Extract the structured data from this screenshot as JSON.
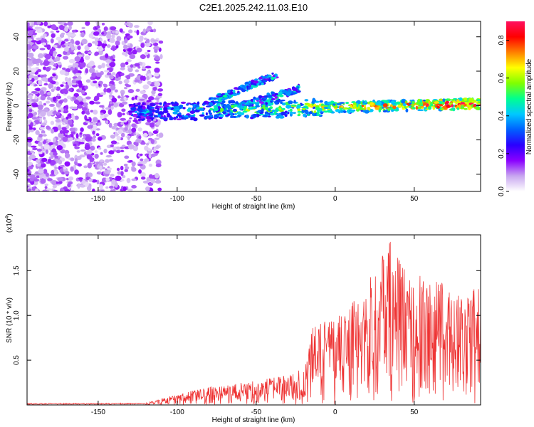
{
  "title": "C2E1.2025.242.11.03.E10",
  "chart_data": [
    {
      "type": "heatmap",
      "xlabel": "Height of straight line (km)",
      "ylabel": "Frequency (Hz)",
      "xlim": [
        -195,
        92
      ],
      "ylim": [
        -50,
        49
      ],
      "xticks": [
        -150,
        -100,
        -50,
        0,
        50
      ],
      "xtick_labels": [
        "-150",
        "-100",
        "-50",
        "0",
        "50"
      ],
      "yticks": [
        -40,
        -20,
        0,
        20,
        40
      ],
      "ytick_labels": [
        "-40",
        "-20",
        "0",
        "20",
        "40"
      ],
      "colorbar": {
        "label": "Normalized spectral amplitude",
        "range": [
          0,
          0.9
        ],
        "ticks": [
          "0.0",
          "0.2",
          "0.4",
          "0.6",
          "0.8"
        ],
        "tick_values": [
          0,
          0.2,
          0.4,
          0.6,
          0.8
        ],
        "colors": [
          "#ffffff",
          "#c8a6f0",
          "#8a00ff",
          "#2a00ff",
          "#0060ff",
          "#00c8ff",
          "#00ff90",
          "#80ff00",
          "#ffff00",
          "#ff8000",
          "#ff0000",
          "#ff1060"
        ]
      },
      "features": [
        {
          "name": "diffuse noise",
          "x_range": [
            -195,
            -118
          ],
          "y_range": [
            -50,
            49
          ],
          "amplitude": 0.08
        },
        {
          "name": "main trace",
          "x_start": -130,
          "y_start": -4,
          "x_end": 92,
          "y_end": 1,
          "amplitude_start": 0.35,
          "amplitude_end": 0.9
        },
        {
          "name": "upper branch 1",
          "x_start": -80,
          "y_start": 2,
          "x_end": -37,
          "y_end": 18
        },
        {
          "name": "upper branch 2",
          "x_start": -60,
          "y_start": 0,
          "x_end": -22,
          "y_end": 10
        }
      ]
    },
    {
      "type": "line",
      "xlabel": "Height of straight line (km)",
      "ylabel": "SNR (10 * v/v)",
      "y_multiplier": "(x10",
      "y_multiplier_exp": "4",
      "y_multiplier_close": ")",
      "xlim": [
        -195,
        92
      ],
      "ylim": [
        0,
        1.9
      ],
      "xticks": [
        -150,
        -100,
        -50,
        0,
        50
      ],
      "xtick_labels": [
        "-150",
        "-100",
        "-50",
        "0",
        "50"
      ],
      "yticks": [
        0.5,
        1.0,
        1.5
      ],
      "ytick_labels": [
        "0.5",
        "1.0",
        "1.5"
      ],
      "series": [
        {
          "name": "SNR",
          "color": "#ee3333",
          "envelope_x": [
            -195,
            -120,
            -100,
            -80,
            -60,
            -40,
            -20,
            -15,
            0,
            15,
            25,
            35,
            45,
            60,
            75,
            92
          ],
          "envelope_y": [
            0.02,
            0.02,
            0.12,
            0.2,
            0.25,
            0.3,
            0.4,
            0.85,
            1.0,
            1.2,
            1.55,
            1.85,
            1.5,
            1.4,
            1.35,
            1.3
          ]
        }
      ]
    }
  ]
}
